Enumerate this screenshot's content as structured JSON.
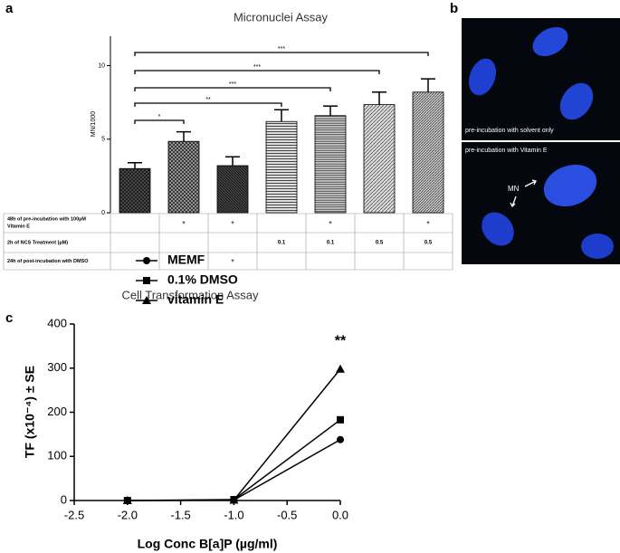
{
  "panels": [
    "a",
    "b",
    "c"
  ],
  "chart_data": [
    {
      "type": "bar",
      "title": "Micronuclei Assay",
      "y_label": "MN/1000",
      "categories": [
        null,
        null,
        null,
        null,
        null,
        null,
        null
      ],
      "values": [
        3.0,
        4.85,
        3.2,
        6.2,
        6.6,
        7.35,
        8.2
      ],
      "errors": [
        0.4,
        0.65,
        0.6,
        0.8,
        0.65,
        0.85,
        0.9
      ],
      "ylim": [
        0,
        12
      ],
      "yticks": [
        0,
        5,
        10
      ],
      "annotations": [
        {
          "from": 0,
          "to": 1,
          "label": "*"
        },
        {
          "from": 0,
          "to": 3,
          "label": "**"
        },
        {
          "from": 0,
          "to": 4,
          "label": "***"
        },
        {
          "from": 0,
          "to": 5,
          "label": "***"
        },
        {
          "from": 0,
          "to": 6,
          "label": "***"
        }
      ],
      "table": {
        "rows": [
          {
            "label": "48h of pre-incubation with 100µM Vitamin E",
            "cells": [
              null,
              "+",
              "+",
              null,
              "+",
              null,
              "+"
            ]
          },
          {
            "label": "2h of NCS Treatment (µM)",
            "cells": [
              null,
              null,
              null,
              "0.1",
              "0.1",
              "0.5",
              "0.5"
            ]
          },
          {
            "label": "24h of post-incubation with DMSO",
            "cells": [
              null,
              null,
              "+",
              null,
              null,
              null,
              null
            ]
          }
        ]
      }
    },
    {
      "type": "line",
      "title": "Cell Transformation Assay",
      "x_label": "Log Conc B[a]P (µg/ml)",
      "y_label": "TF (x10⁻⁴) ± SE",
      "x": [
        -2.0,
        -1.0,
        0.0
      ],
      "series": [
        {
          "name": "MEMF",
          "color": "#000000",
          "marker": "circle",
          "values": [
            0,
            1,
            138
          ]
        },
        {
          "name": "0.1% DMSO",
          "color": "#000000",
          "marker": "square",
          "values": [
            0,
            2,
            183
          ]
        },
        {
          "name": "vitamin E",
          "color": "#000000",
          "marker": "triangle",
          "values": [
            0,
            1,
            298
          ]
        }
      ],
      "xlim": [
        -2.5,
        0
      ],
      "xticks": [
        -2.5,
        {
          "value": -2.0,
          "label": "-2.0"
        },
        -1.5,
        {
          "value": -1.0,
          "label": "-1.0"
        },
        -0.5,
        {
          "value": 0,
          "label": "0.0"
        }
      ],
      "ylim": [
        0,
        400
      ],
      "yticks": [
        0,
        100,
        200,
        300,
        400
      ],
      "legend": "upper left",
      "annotations": [
        {
          "x": 0,
          "y": 360,
          "label": "**"
        }
      ]
    }
  ],
  "panel_b": {
    "top_caption": "pre-incubation with solvent only",
    "bottom_caption": "pre-incubation with Vitamin E",
    "marker_label": "MN"
  }
}
